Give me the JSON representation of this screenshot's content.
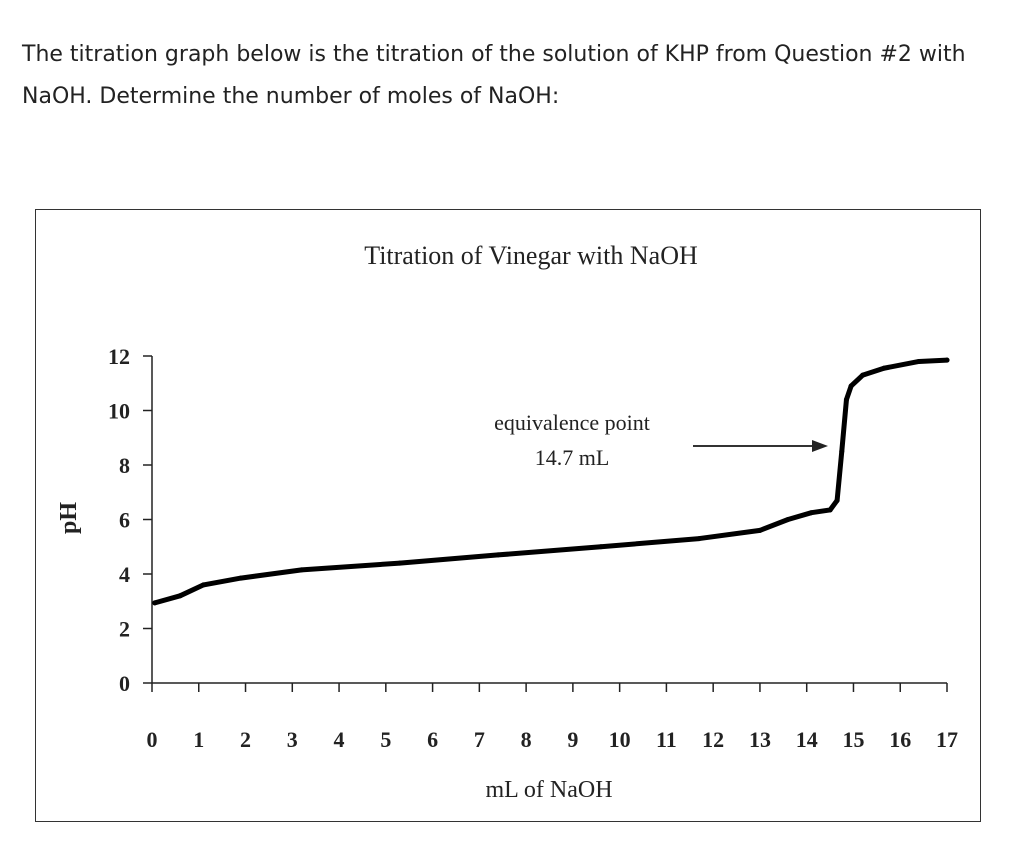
{
  "question": "The titration graph below is the titration of the solution of KHP from Question #2 with NaOH. Determine the number of moles of NaOH:",
  "chart_data": {
    "type": "line",
    "title": "Titration of Vinegar with NaOH",
    "xlabel": "mL of NaOH",
    "ylabel": "pH",
    "xlim": [
      0,
      17
    ],
    "ylim": [
      0,
      12
    ],
    "xticks": [
      "0",
      "1",
      "2",
      "3",
      "4",
      "5",
      "6",
      "7",
      "8",
      "9",
      "10",
      "11",
      "12",
      "13",
      "14",
      "15",
      "16",
      "17"
    ],
    "yticks": [
      "0",
      "2",
      "4",
      "6",
      "8",
      "10",
      "12"
    ],
    "grid": false,
    "series": [
      {
        "color": "#000000",
        "x": [
          0.06,
          0.6,
          1.1,
          1.9,
          3.2,
          5.3,
          7.4,
          9.6,
          11.7,
          13.0,
          13.6,
          14.1,
          14.5,
          14.65,
          14.75,
          14.85,
          14.95,
          15.2,
          15.65,
          16.4,
          17.0
        ],
        "y": [
          2.94,
          3.2,
          3.6,
          3.85,
          4.15,
          4.4,
          4.7,
          5.0,
          5.3,
          5.6,
          6.0,
          6.25,
          6.35,
          6.7,
          8.5,
          10.4,
          10.9,
          11.3,
          11.55,
          11.8,
          11.85
        ]
      }
    ],
    "annotation": {
      "line1": "equivalence point",
      "line2": "14.7 mL"
    }
  }
}
